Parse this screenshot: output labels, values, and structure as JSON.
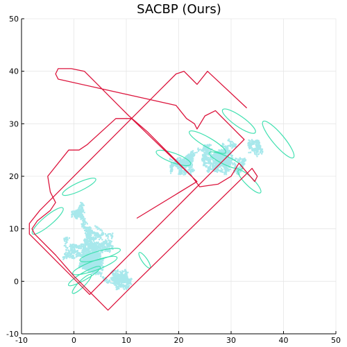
{
  "chart_data": {
    "type": "line",
    "title": "SACBP (Ours)",
    "xlabel": "",
    "ylabel": "",
    "xlim": [
      -10,
      50
    ],
    "ylim": [
      -10,
      50
    ],
    "x_ticks": [
      -10,
      0,
      10,
      20,
      30,
      40,
      50
    ],
    "y_ticks": [
      -10,
      0,
      10,
      20,
      30,
      40,
      50
    ],
    "grid": true,
    "legend": "none",
    "colors": {
      "trajectory": "#dc143c",
      "ellipses": "#40e0b0",
      "belief_particles": "#a8e8ec"
    },
    "trajectory": [
      [
        12,
        12
      ],
      [
        23.5,
        19.0
      ],
      [
        11.0,
        31.0
      ],
      [
        8.0,
        31.0
      ],
      [
        2.5,
        26.0
      ],
      [
        1.0,
        25.0
      ],
      [
        -1.0,
        25.0
      ],
      [
        -5.0,
        20.0
      ],
      [
        -4.5,
        17.0
      ],
      [
        -3.5,
        15.0
      ],
      [
        -4.5,
        13.5
      ],
      [
        -7.0,
        11.5
      ],
      [
        -8.0,
        10.0
      ],
      [
        -7.5,
        9.0
      ],
      [
        -3.5,
        5.0
      ],
      [
        0.0,
        1.0
      ],
      [
        2.5,
        -1.5
      ],
      [
        5.0,
        -4.0
      ],
      [
        6.5,
        -5.5
      ],
      [
        8.0,
        -4.0
      ],
      [
        11.0,
        -1.0
      ],
      [
        33.0,
        20.5
      ],
      [
        34.0,
        21.5
      ],
      [
        35.0,
        20.0
      ],
      [
        34.5,
        19.0
      ],
      [
        31.5,
        22.5
      ],
      [
        30.0,
        20.0
      ],
      [
        27.5,
        18.5
      ],
      [
        24.0,
        18.0
      ],
      [
        22.5,
        20.0
      ],
      [
        20.5,
        22.0
      ],
      [
        17.0,
        25.5
      ],
      [
        14.0,
        28.5
      ],
      [
        10.5,
        31.5
      ],
      [
        8.5,
        33.5
      ],
      [
        6.0,
        36.0
      ],
      [
        4.5,
        37.5
      ],
      [
        2.0,
        40.0
      ],
      [
        -0.5,
        40.5
      ],
      [
        -3.0,
        40.5
      ],
      [
        -3.5,
        39.5
      ],
      [
        -3.0,
        38.5
      ],
      [
        19.5,
        33.5
      ],
      [
        21.5,
        31.0
      ],
      [
        23.0,
        30.0
      ],
      [
        23.5,
        29.0
      ],
      [
        25.0,
        31.5
      ],
      [
        27.0,
        32.5
      ],
      [
        28.0,
        31.5
      ],
      [
        29.5,
        30.0
      ],
      [
        30.5,
        29.0
      ],
      [
        31.5,
        28.0
      ],
      [
        32.5,
        27.0
      ],
      [
        30.0,
        24.5
      ],
      [
        26.5,
        21.0
      ],
      [
        22.0,
        16.5
      ],
      [
        18.0,
        12.5
      ],
      [
        14.0,
        8.5
      ],
      [
        10.0,
        4.5
      ],
      [
        7.0,
        1.5
      ],
      [
        4.5,
        -1.0
      ],
      [
        3.0,
        -2.5
      ],
      [
        0.5,
        0.0
      ],
      [
        -2.5,
        3.0
      ],
      [
        -6.0,
        6.5
      ],
      [
        -8.5,
        9.0
      ],
      [
        -8.5,
        11.0
      ],
      [
        -6.5,
        13.5
      ],
      [
        -4.0,
        16.0
      ],
      [
        -0.5,
        19.5
      ],
      [
        4.0,
        24.0
      ],
      [
        9.5,
        29.5
      ],
      [
        13.0,
        33.0
      ],
      [
        16.5,
        36.5
      ],
      [
        19.5,
        39.5
      ],
      [
        21.0,
        40.0
      ],
      [
        22.5,
        38.5
      ],
      [
        23.5,
        37.5
      ],
      [
        25.5,
        40.0
      ],
      [
        33.0,
        33.0
      ]
    ],
    "ellipses": [
      {
        "cx": 1.0,
        "cy": 18.0,
        "rx": 3.5,
        "ry": 0.8,
        "angle": 25
      },
      {
        "cx": -5.0,
        "cy": 11.5,
        "rx": 3.8,
        "ry": 0.9,
        "angle": 40
      },
      {
        "cx": 5.0,
        "cy": 5.0,
        "rx": 4.0,
        "ry": 0.8,
        "angle": 15
      },
      {
        "cx": 4.0,
        "cy": 3.0,
        "rx": 4.5,
        "ry": 0.9,
        "angle": 20
      },
      {
        "cx": 2.0,
        "cy": 1.0,
        "rx": 3.5,
        "ry": 0.7,
        "angle": 30
      },
      {
        "cx": 1.5,
        "cy": -0.5,
        "rx": 2.5,
        "ry": 0.6,
        "angle": 45
      },
      {
        "cx": 13.5,
        "cy": 4.0,
        "rx": 1.8,
        "ry": 0.5,
        "angle": -55
      },
      {
        "cx": 19.0,
        "cy": 23.5,
        "rx": 3.5,
        "ry": 0.9,
        "angle": -20
      },
      {
        "cx": 25.5,
        "cy": 26.5,
        "rx": 4.0,
        "ry": 0.9,
        "angle": -30
      },
      {
        "cx": 31.5,
        "cy": 30.5,
        "rx": 3.8,
        "ry": 1.0,
        "angle": -35
      },
      {
        "cx": 39.0,
        "cy": 27.0,
        "rx": 4.5,
        "ry": 1.1,
        "angle": -50
      },
      {
        "cx": 33.5,
        "cy": 19.0,
        "rx": 3.0,
        "ry": 0.8,
        "angle": -45
      },
      {
        "cx": 29.0,
        "cy": 23.0,
        "rx": 3.5,
        "ry": 0.8,
        "angle": -25
      }
    ],
    "particle_clusters": [
      {
        "cx": 2.5,
        "cy": 6.0,
        "sx": 3.0,
        "sy": 3.0,
        "n": 1400
      },
      {
        "cx": 5.0,
        "cy": 4.0,
        "sx": 3.0,
        "sy": 2.0,
        "n": 700
      },
      {
        "cx": 8.5,
        "cy": 0.5,
        "sx": 2.0,
        "sy": 1.2,
        "n": 500
      },
      {
        "cx": 1.0,
        "cy": 13.0,
        "sx": 1.0,
        "sy": 2.0,
        "n": 250
      },
      {
        "cx": 26.0,
        "cy": 24.0,
        "sx": 3.5,
        "sy": 2.0,
        "n": 900
      },
      {
        "cx": 29.5,
        "cy": 22.5,
        "sx": 2.5,
        "sy": 2.5,
        "n": 700
      },
      {
        "cx": 21.0,
        "cy": 22.0,
        "sx": 1.8,
        "sy": 1.5,
        "n": 400
      },
      {
        "cx": 35.0,
        "cy": 25.5,
        "sx": 1.2,
        "sy": 1.0,
        "n": 200
      }
    ]
  }
}
